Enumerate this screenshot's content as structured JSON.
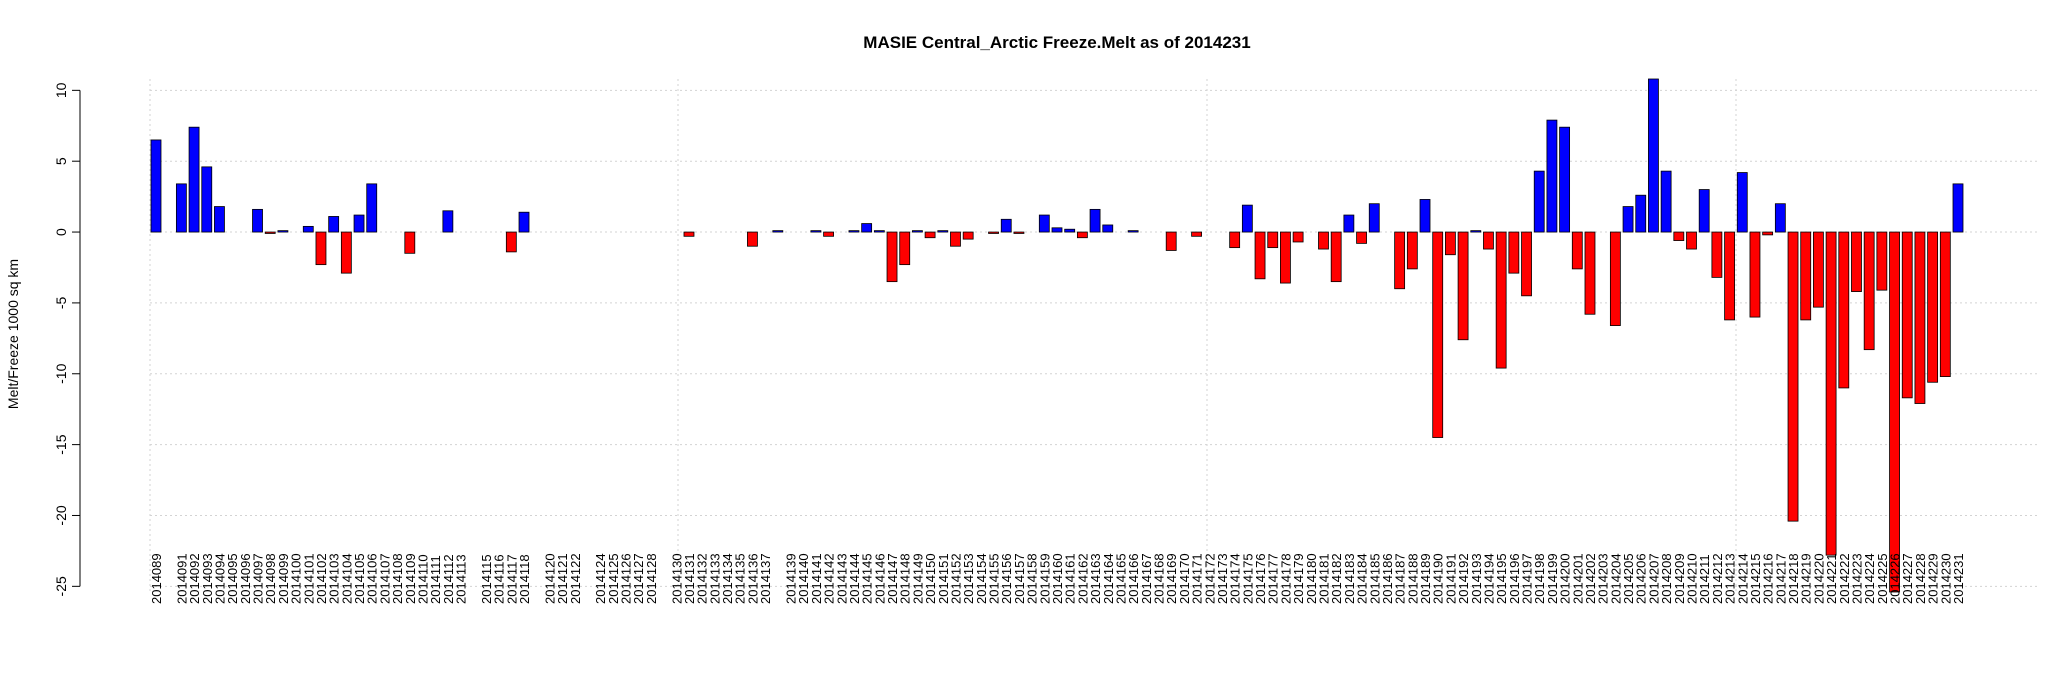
{
  "chart_data": {
    "type": "bar",
    "title": "MASIE Central_Arctic Freeze.Melt as of 2014231",
    "y_label": "Melt/Freeze 1000 sq km",
    "categories": [
      "2014089",
      null,
      "2014091",
      "2014092",
      "2014093",
      "2014094",
      "2014095",
      "2014096",
      "2014097",
      "2014098",
      "2014099",
      "2014100",
      "2014101",
      "2014102",
      "2014103",
      "2014104",
      "2014105",
      "2014106",
      "2014107",
      "2014108",
      "2014109",
      "2014110",
      "2014111",
      "2014112",
      "2014113",
      null,
      "2014115",
      "2014116",
      "2014117",
      "2014118",
      null,
      "2014120",
      "2014121",
      "2014122",
      null,
      "2014124",
      "2014125",
      "2014126",
      "2014127",
      "2014128",
      null,
      "2014130",
      "2014131",
      "2014132",
      "2014133",
      "2014134",
      "2014135",
      "2014136",
      "2014137",
      null,
      "2014139",
      "2014140",
      "2014141",
      "2014142",
      "2014143",
      "2014144",
      "2014145",
      "2014146",
      "2014147",
      "2014148",
      "2014149",
      "2014150",
      "2014151",
      "2014152",
      "2014153",
      "2014154",
      "2014155",
      "2014156",
      "2014157",
      "2014158",
      "2014159",
      "2014160",
      "2014161",
      "2014162",
      "2014163",
      "2014164",
      "2014165",
      "2014166",
      "2014167",
      "2014168",
      "2014169",
      "2014170",
      "2014171",
      "2014172",
      "2014173",
      "2014174",
      "2014175",
      "2014176",
      "2014177",
      "2014178",
      "2014179",
      "2014180",
      "2014181",
      "2014182",
      "2014183",
      "2014184",
      "2014185",
      "2014186",
      "2014187",
      "2014188",
      "2014189",
      "2014190",
      "2014191",
      "2014192",
      "2014193",
      "2014194",
      "2014195",
      "2014196",
      "2014197",
      "2014198",
      "2014199",
      "2014200",
      "2014201",
      "2014202",
      "2014203",
      "2014204",
      "2014205",
      "2014206",
      "2014207",
      "2014208",
      "2014209",
      "2014210",
      "2014211",
      "2014212",
      "2014213",
      "2014214",
      "2014215",
      "2014216",
      "2014217",
      "2014218",
      "2014219",
      "2014220",
      "2014221",
      "2014222",
      "2014223",
      "2014224",
      "2014225",
      "2014226",
      "2014227",
      "2014228",
      "2014229",
      "2014230",
      "2014231"
    ],
    "values": [
      6.5,
      0,
      3.4,
      7.4,
      4.6,
      1.8,
      0,
      0,
      1.6,
      -0.1,
      0.1,
      0,
      0.4,
      -2.3,
      1.1,
      -2.9,
      1.2,
      3.4,
      0,
      0,
      -1.5,
      0,
      0,
      1.5,
      0,
      0,
      0,
      0,
      -1.4,
      1.4,
      0,
      0,
      0,
      0,
      0,
      0,
      0,
      0,
      0,
      0,
      0,
      0,
      -0.3,
      0,
      0,
      0,
      0,
      -1.0,
      0,
      0.1,
      0,
      0,
      0.1,
      -0.3,
      0,
      0.1,
      0.6,
      0.1,
      -3.5,
      -2.3,
      0.1,
      -0.4,
      0.1,
      -1.0,
      -0.5,
      0,
      -0.1,
      0.9,
      -0.1,
      0,
      1.2,
      0.3,
      0.2,
      -0.4,
      1.6,
      0.5,
      0,
      0.1,
      0,
      0,
      -1.3,
      0,
      -0.3,
      0,
      0,
      -1.1,
      1.9,
      -3.3,
      -1.1,
      -3.6,
      -0.7,
      0,
      -1.2,
      -3.5,
      1.2,
      -0.8,
      2.0,
      0,
      -4.0,
      -2.6,
      2.3,
      -14.5,
      -1.6,
      -7.6,
      0.1,
      -1.2,
      -9.6,
      -2.9,
      -4.5,
      4.3,
      7.9,
      7.4,
      -2.6,
      -5.8,
      0,
      -6.6,
      1.8,
      2.6,
      10.8,
      4.3,
      -0.6,
      -1.2,
      3.0,
      -3.2,
      -6.2,
      4.2,
      -6.0,
      -0.2,
      2.0,
      -20.4,
      -6.2,
      -5.3,
      -22.8,
      -11.0,
      -4.2,
      -8.3,
      -4.1,
      -25.4,
      -11.7,
      -12.1,
      -10.6,
      -10.2,
      3.4
    ],
    "positive_color": "#0000ff",
    "negative_color": "#ff0000",
    "ylim": [
      -25.4,
      10.8
    ],
    "yticks": [
      -25,
      -20,
      -15,
      -10,
      -5,
      0,
      5,
      10
    ],
    "grid": true
  }
}
